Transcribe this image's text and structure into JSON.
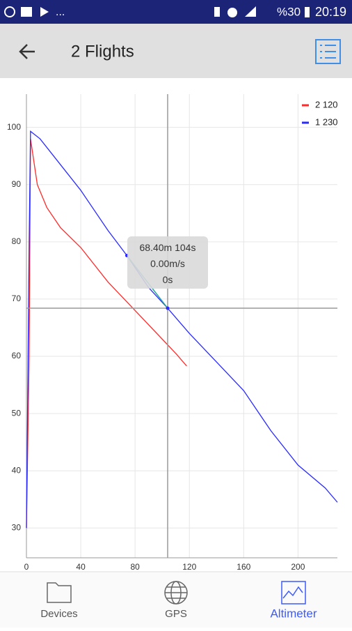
{
  "status_bar": {
    "notifications": "...",
    "battery": "%30",
    "time": "20:19"
  },
  "header": {
    "title": "2 Flights"
  },
  "chart_data": {
    "type": "line",
    "series": [
      {
        "name": "2 120",
        "color": "#ff2a2a",
        "x": [
          0,
          2,
          3,
          8,
          15,
          25,
          40,
          50,
          60,
          80,
          100,
          110,
          118
        ],
        "values": [
          30,
          60,
          98,
          90,
          86,
          82.5,
          79,
          76,
          73,
          68,
          63,
          60.5,
          58.3
        ]
      },
      {
        "name": "1 230",
        "color": "#2a2aff",
        "x": [
          0,
          2,
          3,
          10,
          20,
          30,
          40,
          60,
          74,
          90,
          104,
          120,
          140,
          160,
          180,
          200,
          220,
          229
        ],
        "values": [
          30,
          80,
          99.3,
          98,
          95,
          92,
          89,
          82,
          77.6,
          72,
          68.4,
          64,
          59,
          54,
          47,
          41,
          37,
          34.5
        ]
      }
    ],
    "xlim": [
      0,
      229
    ],
    "ylim": [
      24.8,
      105.8
    ],
    "xticks": [
      0,
      40,
      80,
      120,
      160,
      200
    ],
    "yticks": [
      30,
      40,
      50,
      60,
      70,
      80,
      90,
      100
    ],
    "grid": true,
    "legend": "top-right",
    "cursor": {
      "x": 104,
      "y": 68.4
    },
    "tooltip": [
      "68.40m 104s",
      "0.00m/s",
      "0s"
    ],
    "selection": {
      "color": "#26a69a",
      "x": [
        74,
        104
      ],
      "y": [
        77.6,
        68.4
      ]
    }
  },
  "nav": {
    "items": [
      "Devices",
      "GPS",
      "Altimeter"
    ],
    "active": 2
  }
}
